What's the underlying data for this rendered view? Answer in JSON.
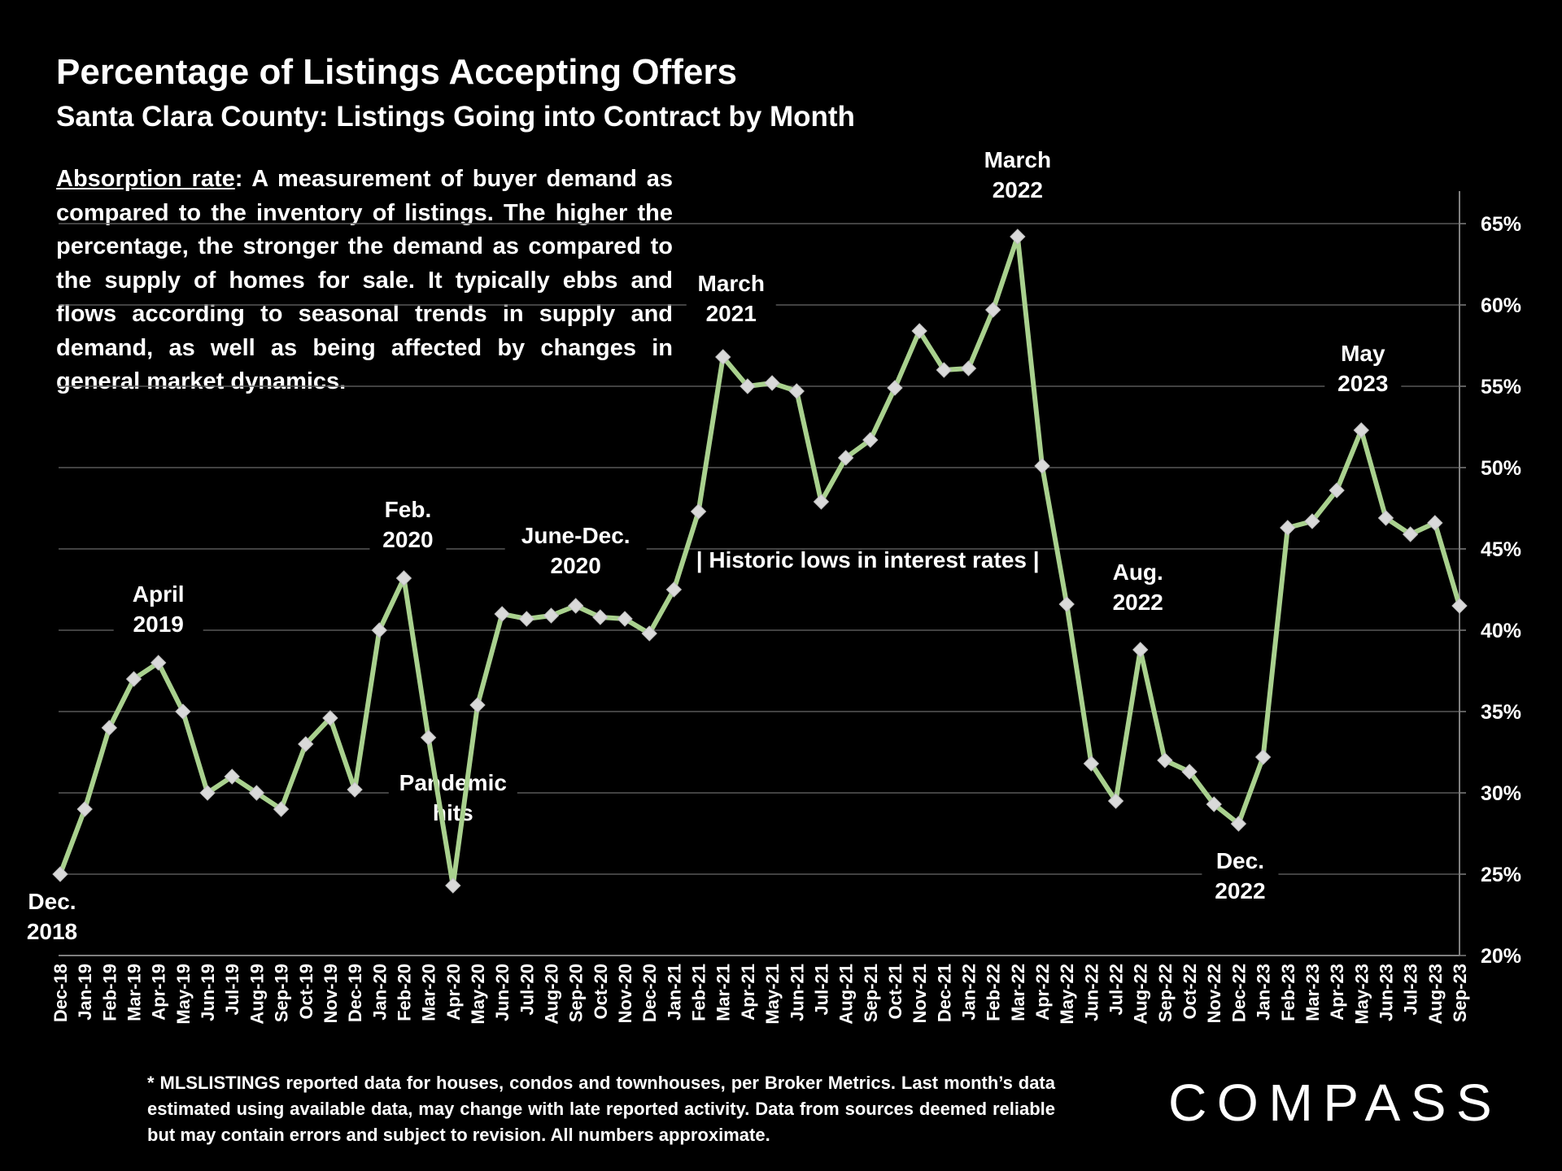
{
  "header": {
    "title": "Percentage of Listings Accepting Offers",
    "subtitle": "Santa Clara County: Listings Going into Contract by Month"
  },
  "description": {
    "term": "Absorption rate",
    "text": ":  A measurement of buyer demand as compared to the inventory of listings. The higher the percentage, the stronger the demand as compared to the supply of homes for sale. It typically ebbs and flows according to seasonal trends in supply and demand, as well as being affected by changes in general market dynamics."
  },
  "footnote": "* MLSLISTINGS reported data for houses, condos and townhouses, per Broker Metrics. Last month’s data estimated using available data, may change with late reported activity. Data from sources deemed reliable but may contain errors and subject to revision. All numbers approximate.",
  "brand": {
    "logo_text": "COMPASS"
  },
  "colors": {
    "background": "#000000",
    "line": "#a9d18e",
    "marker": "#d9d9d9",
    "grid": "#595959",
    "text": "#ffffff"
  },
  "chart_data": {
    "type": "line",
    "title": "Percentage of Listings Accepting Offers",
    "ylim": [
      20,
      65
    ],
    "y_ticks": [
      "20%",
      "25%",
      "30%",
      "35%",
      "40%",
      "45%",
      "50%",
      "55%",
      "60%",
      "65%"
    ],
    "y_axis_position": "right",
    "grid": true,
    "categories": [
      "Dec-18",
      "Jan-19",
      "Feb-19",
      "Mar-19",
      "Apr-19",
      "May-19",
      "Jun-19",
      "Jul-19",
      "Aug-19",
      "Sep-19",
      "Oct-19",
      "Nov-19",
      "Dec-19",
      "Jan-20",
      "Feb-20",
      "Mar-20",
      "Apr-20",
      "May-20",
      "Jun-20",
      "Jul-20",
      "Aug-20",
      "Sep-20",
      "Oct-20",
      "Nov-20",
      "Dec-20",
      "Jan-21",
      "Feb-21",
      "Mar-21",
      "Apr-21",
      "May-21",
      "Jun-21",
      "Jul-21",
      "Aug-21",
      "Sep-21",
      "Oct-21",
      "Nov-21",
      "Dec-21",
      "Jan-22",
      "Feb-22",
      "Mar-22",
      "Apr-22",
      "May-22",
      "Jun-22",
      "Jul-22",
      "Aug-22",
      "Sep-22",
      "Oct-22",
      "Nov-22",
      "Dec-22",
      "Jan-23",
      "Feb-23",
      "Mar-23",
      "Apr-23",
      "May-23",
      "Jun-23",
      "Jul-23",
      "Aug-23",
      "Sep-23"
    ],
    "series": [
      {
        "name": "Listings Accepting Offers (%)",
        "values": [
          25.0,
          29.0,
          34.0,
          37.0,
          38.0,
          35.0,
          30.0,
          31.0,
          30.0,
          29.0,
          33.0,
          34.6,
          30.2,
          40.0,
          43.2,
          33.4,
          24.3,
          35.4,
          41.0,
          40.7,
          40.9,
          41.5,
          40.8,
          40.7,
          39.8,
          42.5,
          47.3,
          56.8,
          55.0,
          55.2,
          54.7,
          47.9,
          50.6,
          51.7,
          54.9,
          58.4,
          56.0,
          56.1,
          59.7,
          64.2,
          50.1,
          41.6,
          31.8,
          29.5,
          38.8,
          32.0,
          31.3,
          29.3,
          28.1,
          32.2,
          46.3,
          46.7,
          48.6,
          52.3,
          46.9,
          45.9,
          46.6,
          41.5
        ]
      }
    ],
    "annotations": [
      {
        "index": 0,
        "lines": [
          "Dec.",
          "2018"
        ]
      },
      {
        "index": 4,
        "lines": [
          "April",
          "2019"
        ]
      },
      {
        "index": 14,
        "lines": [
          "Feb.",
          "2020"
        ]
      },
      {
        "index": 16,
        "lines": [
          "Pandemic",
          "hits"
        ]
      },
      {
        "index": 21,
        "lines": [
          "June-Dec.",
          "2020"
        ]
      },
      {
        "index": 27,
        "lines": [
          "March",
          "2021"
        ]
      },
      {
        "index": 39,
        "lines": [
          "March",
          "2022"
        ]
      },
      {
        "index": 44,
        "lines": [
          "Aug.",
          "2022"
        ]
      },
      {
        "index": 48,
        "lines": [
          "Dec.",
          "2022"
        ]
      },
      {
        "index": 53,
        "lines": [
          "May",
          "2023"
        ]
      }
    ],
    "span_annotation": "| Historic lows in interest rates |"
  }
}
